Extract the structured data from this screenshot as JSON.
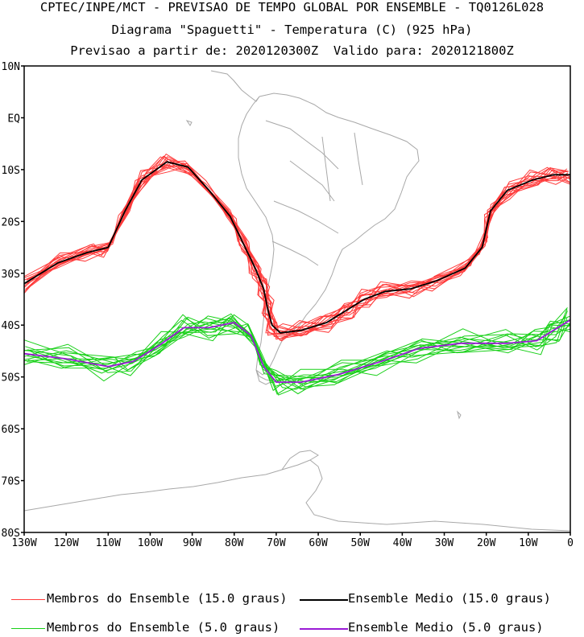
{
  "header": {
    "line1": "CPTEC/INPE/MCT - PREVISAO DE TEMPO GLOBAL POR ENSEMBLE - TQ0126L028",
    "line2": "Diagrama \"Spaguetti\" - Temperatura (C) (925 hPa)",
    "line3": "Previsao a partir de: 2020120300Z  Valido para: 2020121800Z"
  },
  "axes": {
    "lat_labels": [
      "10N",
      "EQ",
      "10S",
      "20S",
      "30S",
      "40S",
      "50S",
      "60S",
      "70S",
      "80S"
    ],
    "lon_labels": [
      "130W",
      "120W",
      "110W",
      "100W",
      "90W",
      "80W",
      "70W",
      "60W",
      "50W",
      "40W",
      "30W",
      "20W",
      "10W",
      "0"
    ]
  },
  "legend": {
    "items": [
      {
        "label": "Membros do Ensemble (15.0 graus)",
        "color": "#ff3a3a"
      },
      {
        "label": "Ensemble Medio (15.0 graus)",
        "color": "#000000"
      },
      {
        "label": "Membros do Ensemble (5.0 graus)",
        "color": "#18d018"
      },
      {
        "label": "Ensemble Medio (5.0 graus)",
        "color": "#9a1ad6"
      }
    ]
  },
  "map_data": {
    "lon_range": [
      -130,
      0
    ],
    "lat_range": [
      -80,
      10
    ],
    "contour_15_mean": [
      [
        -130,
        -32
      ],
      [
        -122,
        -28
      ],
      [
        -115,
        -26
      ],
      [
        -110,
        -25
      ],
      [
        -106,
        -18
      ],
      [
        -102,
        -12
      ],
      [
        -96,
        -8.5
      ],
      [
        -91,
        -9.5
      ],
      [
        -86,
        -14
      ],
      [
        -81,
        -19
      ],
      [
        -78,
        -24
      ],
      [
        -75,
        -29
      ],
      [
        -73,
        -33
      ],
      [
        -72,
        -37
      ],
      [
        -71,
        -40
      ],
      [
        -69,
        -41.5
      ],
      [
        -64,
        -41
      ],
      [
        -58,
        -39.5
      ],
      [
        -53,
        -37
      ],
      [
        -49,
        -35
      ],
      [
        -44,
        -33.5
      ],
      [
        -38,
        -33
      ],
      [
        -32,
        -31.5
      ],
      [
        -25,
        -29
      ],
      [
        -21,
        -25
      ],
      [
        -19,
        -18
      ],
      [
        -15,
        -14
      ],
      [
        -9,
        -12
      ],
      [
        -4,
        -11
      ],
      [
        0,
        -11
      ]
    ],
    "contour_5_mean": [
      [
        -130,
        -45.5
      ],
      [
        -120,
        -46.5
      ],
      [
        -110,
        -48
      ],
      [
        -104,
        -47
      ],
      [
        -98,
        -44
      ],
      [
        -92,
        -40.5
      ],
      [
        -86,
        -40.5
      ],
      [
        -80,
        -39.5
      ],
      [
        -76,
        -42
      ],
      [
        -73,
        -48
      ],
      [
        -70,
        -51
      ],
      [
        -64,
        -51
      ],
      [
        -55,
        -49.5
      ],
      [
        -45,
        -47
      ],
      [
        -36,
        -44.5
      ],
      [
        -26,
        -43.5
      ],
      [
        -15,
        -43.5
      ],
      [
        -8,
        -43
      ],
      [
        -4,
        -41
      ],
      [
        0,
        -39
      ]
    ]
  }
}
